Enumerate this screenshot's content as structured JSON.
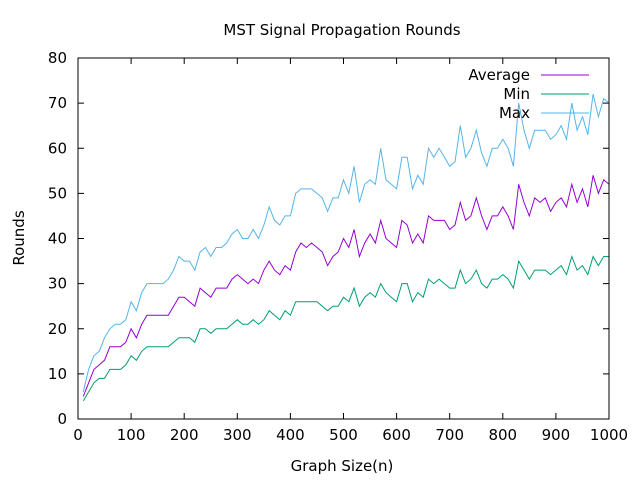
{
  "chart_data": {
    "type": "line",
    "title": "MST Signal Propagation Rounds",
    "xlabel": "Graph Size(n)",
    "ylabel": "Rounds",
    "xlim": [
      0,
      1000
    ],
    "ylim": [
      0,
      80
    ],
    "xticks": [
      0,
      100,
      200,
      300,
      400,
      500,
      600,
      700,
      800,
      900,
      1000
    ],
    "yticks": [
      0,
      10,
      20,
      30,
      40,
      50,
      60,
      70,
      80
    ],
    "grid": false,
    "legend_position": "top-right",
    "x": [
      10,
      20,
      30,
      40,
      50,
      60,
      70,
      80,
      90,
      100,
      110,
      120,
      130,
      140,
      150,
      160,
      170,
      180,
      190,
      200,
      210,
      220,
      230,
      240,
      250,
      260,
      270,
      280,
      290,
      300,
      310,
      320,
      330,
      340,
      350,
      360,
      370,
      380,
      390,
      400,
      410,
      420,
      430,
      440,
      450,
      460,
      470,
      480,
      490,
      500,
      510,
      520,
      530,
      540,
      550,
      560,
      570,
      580,
      590,
      600,
      610,
      620,
      630,
      640,
      650,
      660,
      670,
      680,
      690,
      700,
      710,
      720,
      730,
      740,
      750,
      760,
      770,
      780,
      790,
      800,
      810,
      820,
      830,
      840,
      850,
      860,
      870,
      880,
      890,
      900,
      910,
      920,
      930,
      940,
      950,
      960,
      970,
      980,
      990,
      1000
    ],
    "series": [
      {
        "name": "Average",
        "color": "#9400d3",
        "values": [
          5,
          8,
          11,
          12,
          13,
          16,
          16,
          16,
          17,
          20,
          18,
          21,
          23,
          23,
          23,
          23,
          23,
          25,
          27,
          27,
          26,
          25,
          29,
          28,
          27,
          29,
          29,
          29,
          31,
          32,
          31,
          30,
          31,
          30,
          33,
          35,
          33,
          32,
          34,
          33,
          37,
          39,
          38,
          39,
          38,
          37,
          34,
          36,
          37,
          40,
          38,
          42,
          36,
          39,
          41,
          39,
          44,
          40,
          39,
          38,
          44,
          43,
          39,
          41,
          39,
          45,
          44,
          44,
          44,
          42,
          43,
          48,
          44,
          45,
          49,
          45,
          42,
          45,
          45,
          47,
          45,
          42,
          52,
          48,
          45,
          49,
          48,
          49,
          46,
          48,
          49,
          47,
          52,
          48,
          51,
          47,
          54,
          50,
          53,
          52
        ]
      },
      {
        "name": "Min",
        "color": "#009e73",
        "values": [
          4,
          6,
          8,
          9,
          9,
          11,
          11,
          11,
          12,
          14,
          13,
          15,
          16,
          16,
          16,
          16,
          16,
          17,
          18,
          18,
          18,
          17,
          20,
          20,
          19,
          20,
          20,
          20,
          21,
          22,
          21,
          21,
          22,
          21,
          22,
          24,
          23,
          22,
          24,
          23,
          26,
          26,
          26,
          26,
          26,
          25,
          24,
          25,
          25,
          27,
          26,
          29,
          25,
          27,
          28,
          27,
          30,
          28,
          27,
          26,
          30,
          30,
          26,
          28,
          27,
          31,
          30,
          31,
          30,
          29,
          29,
          33,
          30,
          31,
          33,
          30,
          29,
          31,
          31,
          32,
          31,
          29,
          35,
          33,
          31,
          33,
          33,
          33,
          32,
          33,
          34,
          32,
          36,
          33,
          34,
          32,
          36,
          34,
          36,
          36
        ]
      },
      {
        "name": "Max",
        "color": "#56b4e9",
        "values": [
          6,
          11,
          14,
          15,
          18,
          20,
          21,
          21,
          22,
          26,
          24,
          28,
          30,
          30,
          30,
          30,
          31,
          33,
          36,
          35,
          35,
          33,
          37,
          38,
          36,
          38,
          38,
          39,
          41,
          42,
          40,
          40,
          42,
          40,
          43,
          47,
          44,
          43,
          45,
          45,
          50,
          51,
          51,
          51,
          50,
          49,
          46,
          49,
          49,
          53,
          50,
          56,
          48,
          52,
          53,
          52,
          60,
          53,
          52,
          51,
          58,
          58,
          51,
          54,
          52,
          60,
          58,
          60,
          58,
          56,
          57,
          65,
          58,
          60,
          64,
          59,
          56,
          60,
          60,
          62,
          60,
          56,
          70,
          64,
          60,
          64,
          64,
          64,
          62,
          63,
          65,
          62,
          70,
          64,
          67,
          63,
          72,
          67,
          71,
          70
        ]
      }
    ]
  }
}
